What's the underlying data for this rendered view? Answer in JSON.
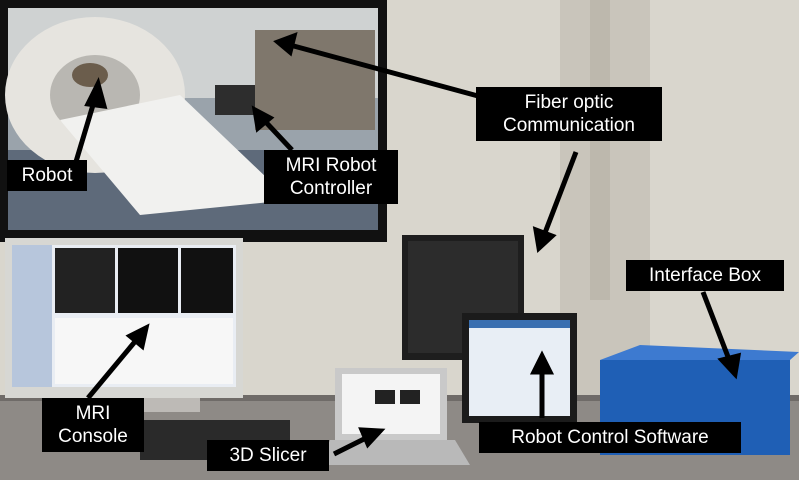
{
  "labels": {
    "robot": "Robot",
    "mri_robot_controller": [
      "MRI Robot",
      "Controller"
    ],
    "fiber_optic": [
      "Fiber optic",
      "Communication"
    ],
    "interface_box": "Interface Box",
    "mri_console": [
      "MRI",
      "Console"
    ],
    "slicer": "3D Slicer",
    "robot_control_software": "Robot Control Software"
  },
  "colors": {
    "label_bg": "#000000",
    "label_text": "#ffffff",
    "wall": "#d9d6cd",
    "interface_box": "#1f5fb5"
  }
}
